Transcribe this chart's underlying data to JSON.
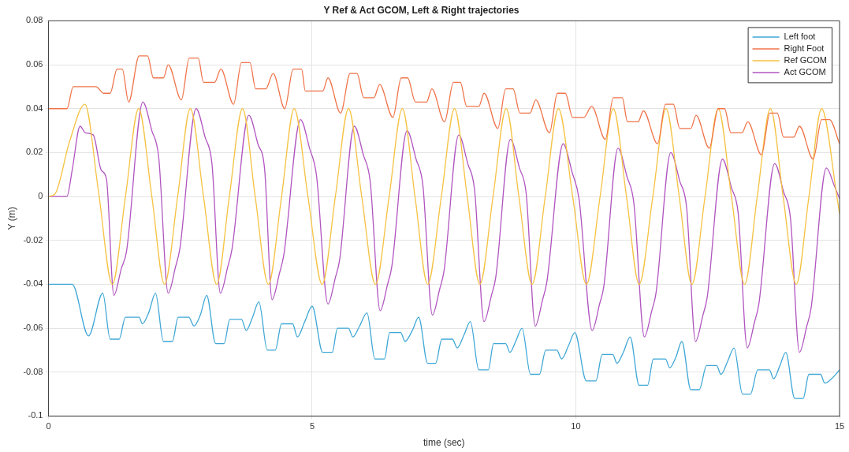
{
  "chart_data": {
    "type": "line",
    "title": "Y Ref & Act GCOM, Left & Right trajectories",
    "xlabel": "time (sec)",
    "ylabel": "Y (m)",
    "xlim": [
      0,
      15
    ],
    "xticks": [
      0,
      5,
      10,
      15
    ],
    "ylim": [
      -0.1,
      0.08
    ],
    "yticks": [
      -0.1,
      -0.08,
      -0.06,
      -0.04,
      -0.02,
      0,
      0.02,
      0.04,
      0.06,
      0.08
    ],
    "grid": true,
    "legend": "top right",
    "marker": "none",
    "line_style": "solid",
    "series": [
      {
        "name": "Left foot",
        "color": "#3fa7d6",
        "x": [
          0,
          0.45,
          0.76,
          1.03,
          1.17,
          1.34,
          1.46,
          1.72,
          1.78,
          1.9,
          2.03,
          2.18,
          2.35,
          2.46,
          2.66,
          2.76,
          2.88,
          3.0,
          3.17,
          3.33,
          3.44,
          3.66,
          3.75,
          3.87,
          3.99,
          4.15,
          4.3,
          4.42,
          4.63,
          4.72,
          4.86,
          5.0,
          5.2,
          5.38,
          5.48,
          5.69,
          5.77,
          5.9,
          6.04,
          6.19,
          6.37,
          6.47,
          6.68,
          6.76,
          6.9,
          7.02,
          7.19,
          7.34,
          7.46,
          7.66,
          7.75,
          7.88,
          8.0,
          8.16,
          8.34,
          8.44,
          8.67,
          8.75,
          8.86,
          8.98,
          9.14,
          9.31,
          9.43,
          9.64,
          9.73,
          9.86,
          9.98,
          10.2,
          10.38,
          10.5,
          10.7,
          10.78,
          10.9,
          11.03,
          11.2,
          11.36,
          11.47,
          11.7,
          11.78,
          11.9,
          12.01,
          12.18,
          12.34,
          12.48,
          12.67,
          12.75,
          12.88,
          13.0,
          13.16,
          13.31,
          13.45,
          13.67,
          13.75,
          13.87,
          13.98,
          14.15,
          14.31,
          14.42,
          14.64,
          14.72,
          14.85,
          15
        ],
        "values": [
          -0.04,
          -0.04,
          -0.0635,
          -0.044,
          -0.065,
          -0.065,
          -0.055,
          -0.055,
          -0.058,
          -0.053,
          -0.044,
          -0.066,
          -0.066,
          -0.055,
          -0.055,
          -0.059,
          -0.054,
          -0.045,
          -0.067,
          -0.067,
          -0.056,
          -0.056,
          -0.061,
          -0.055,
          -0.048,
          -0.07,
          -0.07,
          -0.058,
          -0.058,
          -0.064,
          -0.057,
          -0.05,
          -0.071,
          -0.071,
          -0.06,
          -0.06,
          -0.064,
          -0.059,
          -0.053,
          -0.074,
          -0.074,
          -0.062,
          -0.062,
          -0.066,
          -0.061,
          -0.055,
          -0.076,
          -0.076,
          -0.065,
          -0.065,
          -0.069,
          -0.063,
          -0.057,
          -0.079,
          -0.079,
          -0.067,
          -0.067,
          -0.071,
          -0.066,
          -0.06,
          -0.081,
          -0.081,
          -0.07,
          -0.07,
          -0.074,
          -0.068,
          -0.062,
          -0.084,
          -0.084,
          -0.072,
          -0.072,
          -0.076,
          -0.071,
          -0.064,
          -0.086,
          -0.086,
          -0.074,
          -0.074,
          -0.078,
          -0.073,
          -0.066,
          -0.088,
          -0.088,
          -0.077,
          -0.077,
          -0.081,
          -0.075,
          -0.069,
          -0.09,
          -0.09,
          -0.079,
          -0.079,
          -0.083,
          -0.077,
          -0.071,
          -0.092,
          -0.092,
          -0.081,
          -0.081,
          -0.085,
          -0.083,
          -0.079
        ]
      },
      {
        "name": "Right Foot",
        "color": "#f0744a",
        "x": [
          0,
          0.35,
          0.47,
          0.9,
          1.05,
          1.17,
          1.3,
          1.4,
          1.52,
          1.72,
          1.88,
          1.99,
          2.18,
          2.27,
          2.52,
          2.67,
          2.84,
          2.94,
          3.15,
          3.27,
          3.51,
          3.66,
          3.82,
          3.93,
          4.12,
          4.26,
          4.48,
          4.64,
          4.8,
          4.87,
          5.2,
          5.3,
          5.54,
          5.72,
          5.85,
          5.98,
          6.17,
          6.28,
          6.53,
          6.69,
          6.81,
          6.96,
          7.17,
          7.27,
          7.51,
          7.68,
          7.81,
          7.93,
          8.16,
          8.26,
          8.52,
          8.67,
          8.81,
          8.94,
          9.13,
          9.24,
          9.5,
          9.65,
          9.8,
          9.94,
          10.15,
          10.3,
          10.56,
          10.71,
          10.88,
          10.98,
          11.18,
          11.28,
          11.55,
          11.7,
          11.85,
          11.97,
          12.18,
          12.28,
          12.53,
          12.7,
          12.82,
          12.94,
          13.15,
          13.26,
          13.52,
          13.68,
          13.82,
          13.94,
          14.13,
          14.24,
          14.5,
          14.66,
          14.81,
          15
        ],
        "values": [
          0.04,
          0.04,
          0.05,
          0.05,
          0.047,
          0.047,
          0.058,
          0.058,
          0.043,
          0.064,
          0.064,
          0.054,
          0.054,
          0.06,
          0.044,
          0.063,
          0.063,
          0.052,
          0.052,
          0.058,
          0.042,
          0.061,
          0.061,
          0.049,
          0.049,
          0.056,
          0.04,
          0.058,
          0.058,
          0.048,
          0.048,
          0.054,
          0.038,
          0.056,
          0.056,
          0.045,
          0.045,
          0.051,
          0.036,
          0.054,
          0.054,
          0.043,
          0.043,
          0.049,
          0.034,
          0.052,
          0.052,
          0.041,
          0.041,
          0.047,
          0.031,
          0.049,
          0.049,
          0.038,
          0.038,
          0.044,
          0.029,
          0.047,
          0.047,
          0.036,
          0.036,
          0.041,
          0.026,
          0.045,
          0.045,
          0.034,
          0.034,
          0.039,
          0.024,
          0.042,
          0.042,
          0.031,
          0.031,
          0.037,
          0.022,
          0.04,
          0.04,
          0.029,
          0.029,
          0.034,
          0.019,
          0.038,
          0.038,
          0.027,
          0.027,
          0.032,
          0.017,
          0.035,
          0.035,
          0.024
        ]
      },
      {
        "name": "Ref GCOM",
        "color": "#f5c242",
        "x": [
          0,
          0.12,
          0.4,
          0.69,
          0.95,
          1.21,
          1.46,
          1.71,
          1.96,
          2.2,
          2.45,
          2.69,
          2.94,
          3.19,
          3.43,
          3.68,
          3.92,
          4.17,
          4.42,
          4.66,
          4.92,
          5.19,
          5.44,
          5.69,
          5.94,
          6.2,
          6.46,
          6.71,
          6.95,
          7.19,
          7.45,
          7.7,
          7.94,
          8.18,
          8.43,
          8.68,
          8.92,
          9.17,
          9.42,
          9.67,
          9.94,
          10.2,
          10.46,
          10.71,
          10.96,
          11.2,
          11.46,
          11.71,
          11.96,
          12.2,
          12.45,
          12.7,
          12.95,
          13.2,
          13.44,
          13.69,
          13.93,
          14.18,
          14.42,
          14.66,
          14.95,
          15
        ],
        "values": [
          0,
          0.001,
          0.025,
          0.042,
          0.002,
          -0.04,
          0,
          0.04,
          0,
          -0.04,
          0,
          0.04,
          0,
          -0.04,
          0,
          0.04,
          0,
          -0.04,
          0,
          0.04,
          0,
          -0.04,
          0,
          0.04,
          0,
          -0.04,
          0,
          0.04,
          0,
          -0.04,
          0,
          0.04,
          0,
          -0.04,
          0,
          0.04,
          0,
          -0.04,
          0,
          0.04,
          0,
          -0.04,
          0,
          0.04,
          0,
          -0.04,
          0,
          0.04,
          0,
          -0.04,
          0,
          0.04,
          0,
          -0.04,
          0,
          0.04,
          0,
          -0.04,
          0,
          0.04,
          0,
          -0.008
        ]
      },
      {
        "name": "Act GCOM",
        "color": "#b155c0",
        "x": [
          0,
          0.35,
          0.45,
          0.6,
          0.7,
          0.85,
          1.0,
          1.1,
          1.24,
          1.38,
          1.48,
          1.79,
          1.96,
          2.09,
          2.27,
          2.41,
          2.49,
          2.8,
          2.97,
          3.1,
          3.26,
          3.4,
          3.48,
          3.8,
          3.97,
          4.1,
          4.24,
          4.38,
          4.46,
          4.78,
          4.95,
          5.08,
          5.3,
          5.44,
          5.52,
          5.8,
          5.97,
          6.1,
          6.29,
          6.43,
          6.51,
          6.8,
          6.97,
          7.1,
          7.28,
          7.42,
          7.5,
          7.78,
          7.95,
          8.08,
          8.26,
          8.4,
          8.48,
          8.76,
          8.93,
          9.06,
          9.23,
          9.37,
          9.45,
          9.76,
          9.93,
          10.06,
          10.31,
          10.45,
          10.53,
          10.8,
          10.97,
          11.1,
          11.3,
          11.44,
          11.52,
          11.8,
          11.97,
          12.1,
          12.27,
          12.41,
          12.49,
          12.78,
          12.95,
          13.08,
          13.25,
          13.39,
          13.47,
          13.77,
          13.94,
          14.07,
          14.24,
          14.38,
          14.46,
          14.75,
          14.9,
          15
        ],
        "values": [
          0,
          0,
          0.012,
          0.032,
          0.029,
          0.028,
          0.012,
          0.008,
          -0.045,
          -0.033,
          -0.025,
          0.043,
          0.03,
          0.018,
          -0.044,
          -0.032,
          -0.024,
          0.04,
          0.027,
          0.015,
          -0.044,
          -0.032,
          -0.024,
          0.037,
          0.024,
          0.012,
          -0.047,
          -0.035,
          -0.027,
          0.035,
          0.022,
          0.01,
          -0.049,
          -0.037,
          -0.029,
          0.032,
          0.019,
          0.007,
          -0.052,
          -0.04,
          -0.032,
          0.03,
          0.017,
          0.005,
          -0.054,
          -0.042,
          -0.034,
          0.028,
          0.015,
          0.003,
          -0.057,
          -0.045,
          -0.037,
          0.026,
          0.013,
          0.001,
          -0.059,
          -0.047,
          -0.039,
          0.024,
          0.011,
          -0.001,
          -0.061,
          -0.049,
          -0.041,
          0.022,
          0.009,
          -0.003,
          -0.064,
          -0.052,
          -0.044,
          0.02,
          0.007,
          -0.005,
          -0.066,
          -0.054,
          -0.046,
          0.017,
          0.004,
          -0.008,
          -0.069,
          -0.057,
          -0.049,
          0.015,
          0.002,
          -0.01,
          -0.071,
          -0.059,
          -0.051,
          0.013,
          0.005,
          -0.001
        ]
      }
    ]
  }
}
